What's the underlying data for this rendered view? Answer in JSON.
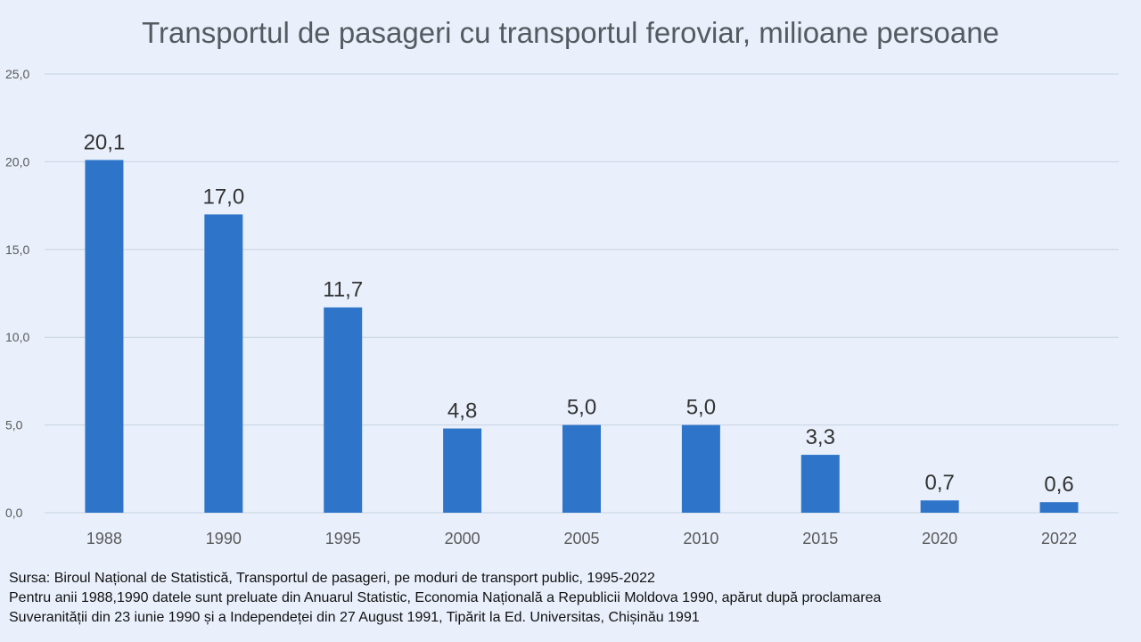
{
  "chart_data": {
    "type": "bar",
    "title": "Transportul de pasageri cu transportul feroviar, milioane persoane",
    "categories": [
      "1988",
      "1990",
      "1995",
      "2000",
      "2005",
      "2010",
      "2015",
      "2020",
      "2022"
    ],
    "values": [
      20.1,
      17.0,
      11.7,
      4.8,
      5.0,
      5.0,
      3.3,
      0.7,
      0.6
    ],
    "data_labels": [
      "20,1",
      "17,0",
      "11,7",
      "4,8",
      "5,0",
      "5,0",
      "3,3",
      "0,7",
      "0,6"
    ],
    "y_ticks": [
      0,
      5,
      10,
      15,
      20,
      25
    ],
    "y_tick_labels": [
      "0,0",
      "5,0",
      "10,0",
      "15,0",
      "20,0",
      "25,0"
    ],
    "ylim": [
      0,
      25
    ],
    "grid": true,
    "bar_color": "#2e75c9",
    "grid_color": "#c8d2e0"
  },
  "footer": {
    "source": "Sursa: Biroul Național de Statistică, Transportul de pasageri, pe moduri de transport public, 1995-2022",
    "note_line1": "Pentru anii 1988,1990 datele sunt preluate din Anuarul Statistic, Economia Națională a Republicii Moldova 1990, apărut după proclamarea",
    "note_line2": "Suveranității din 23 iunie 1990 și a Independeței din 27 August 1991, Tipărit la Ed. Universitas, Chișinău 1991"
  }
}
